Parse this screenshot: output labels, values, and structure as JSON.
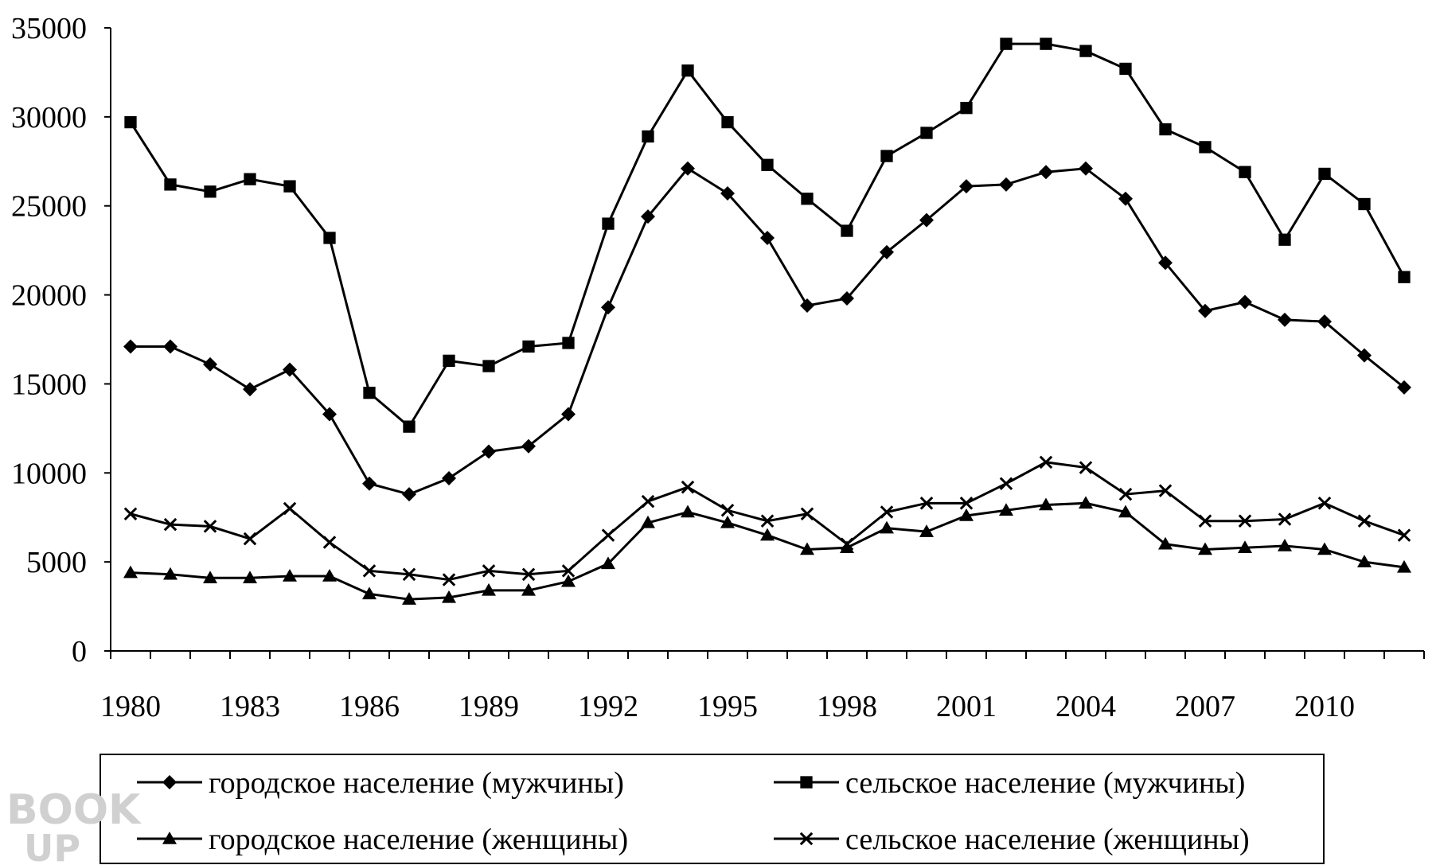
{
  "chart_data": {
    "type": "line",
    "x": [
      1980,
      1981,
      1982,
      1983,
      1984,
      1985,
      1986,
      1987,
      1988,
      1989,
      1990,
      1991,
      1992,
      1993,
      1994,
      1995,
      1996,
      1997,
      1998,
      1999,
      2000,
      2001,
      2002,
      2003,
      2004,
      2005,
      2006,
      2007,
      2008,
      2009,
      2010,
      2011,
      2012
    ],
    "x_tick_labels": [
      "1980",
      "1983",
      "1986",
      "1989",
      "1992",
      "1995",
      "1998",
      "2001",
      "2004",
      "2007",
      "2010"
    ],
    "x_tick_values": [
      1980,
      1983,
      1986,
      1989,
      1992,
      1995,
      1998,
      2001,
      2004,
      2007,
      2010
    ],
    "ylim": [
      0,
      35000
    ],
    "y_ticks": [
      0,
      5000,
      10000,
      15000,
      20000,
      25000,
      30000,
      35000
    ],
    "y_tick_labels": [
      "0",
      "5000",
      "10000",
      "15000",
      "20000",
      "25000",
      "30000",
      "35000"
    ],
    "grid": false,
    "legend_position": "bottom",
    "series": [
      {
        "name": "городское население (мужчины)",
        "marker": "diamond",
        "values": [
          17100,
          17100,
          16100,
          14700,
          15800,
          13300,
          9400,
          8800,
          9700,
          11200,
          11500,
          13300,
          19300,
          24400,
          27100,
          25700,
          23200,
          19400,
          19800,
          22400,
          24200,
          26100,
          26200,
          26900,
          27100,
          25400,
          21800,
          19100,
          19600,
          18600,
          18500,
          16600,
          14800
        ]
      },
      {
        "name": "сельское население (мужчины)",
        "marker": "square",
        "values": [
          29700,
          26200,
          25800,
          26500,
          26100,
          23200,
          14500,
          12600,
          16300,
          16000,
          17100,
          17300,
          24000,
          28900,
          32600,
          29700,
          27300,
          25400,
          23600,
          27800,
          29100,
          30500,
          34100,
          34100,
          33700,
          32700,
          29300,
          28300,
          26900,
          23100,
          26800,
          25100,
          21000
        ]
      },
      {
        "name": "городское население (женщины)",
        "marker": "triangle",
        "values": [
          4400,
          4300,
          4100,
          4100,
          4200,
          4200,
          3200,
          2900,
          3000,
          3400,
          3400,
          3900,
          4900,
          7200,
          7800,
          7200,
          6500,
          5700,
          5800,
          6900,
          6700,
          7600,
          7900,
          8200,
          8300,
          7800,
          6000,
          5700,
          5800,
          5900,
          5700,
          5000,
          4700
        ]
      },
      {
        "name": "сельское население (женщины)",
        "marker": "x",
        "values": [
          7700,
          7100,
          7000,
          6300,
          8000,
          6100,
          4500,
          4300,
          4000,
          4500,
          4300,
          4500,
          6500,
          8400,
          9200,
          7900,
          7300,
          7700,
          6000,
          7800,
          8300,
          8300,
          9400,
          10600,
          10300,
          8800,
          9000,
          7300,
          7300,
          7400,
          8300,
          7300,
          6500
        ]
      }
    ]
  },
  "watermark": {
    "line1": "BOOK",
    "line2": "UP"
  }
}
